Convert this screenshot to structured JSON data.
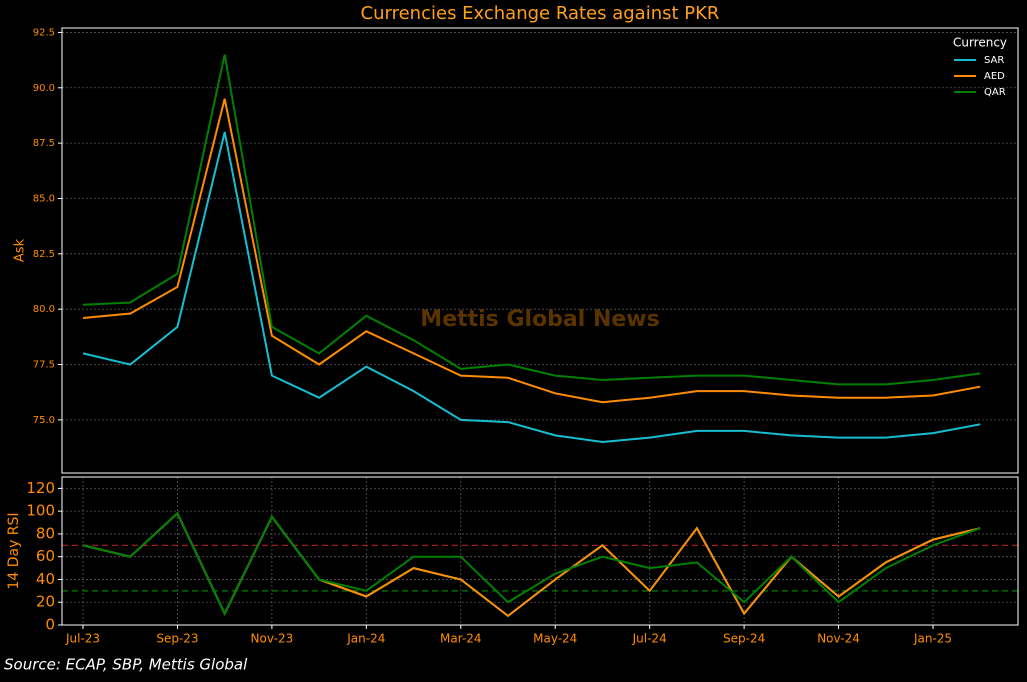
{
  "chart_data": [
    {
      "type": "line",
      "title": "Currencies Exchange Rates against PKR",
      "ylabel": "Ask",
      "watermark": "Mettis Global News",
      "legend_title": "Currency",
      "legend": "upper right",
      "grid": true,
      "x": [
        "2023-07",
        "2023-08",
        "2023-09",
        "2023-10",
        "2023-11",
        "2023-12",
        "2024-01",
        "2024-02",
        "2024-03",
        "2024-04",
        "2024-05",
        "2024-06",
        "2024-07",
        "2024-08",
        "2024-09",
        "2024-10",
        "2024-11",
        "2024-12",
        "2025-01",
        "2025-02"
      ],
      "ylim": [
        72.6,
        92.7
      ],
      "yticks": [
        {
          "value": 75,
          "label": "75.0"
        },
        77.5,
        {
          "value": 80,
          "label": "80.0"
        },
        82.5,
        {
          "value": 85,
          "label": "85.0"
        },
        87.5,
        {
          "value": 90,
          "label": "90.0"
        },
        92.5
      ],
      "series": [
        {
          "name": "SAR",
          "color": "#17becf",
          "values": [
            78.0,
            77.5,
            79.2,
            88.0,
            77.0,
            76.0,
            77.4,
            76.3,
            75.0,
            74.9,
            74.3,
            74.0,
            74.2,
            74.5,
            74.5,
            74.3,
            74.2,
            74.2,
            74.4,
            74.8
          ]
        },
        {
          "name": "AED",
          "color": "#ff8c00",
          "values": [
            79.6,
            79.8,
            81.0,
            89.5,
            78.8,
            77.5,
            79.0,
            78.0,
            77.0,
            76.9,
            76.2,
            75.8,
            76.0,
            76.3,
            76.3,
            76.1,
            76.0,
            76.0,
            76.1,
            76.5
          ]
        },
        {
          "name": "QAR",
          "color": "#008000",
          "values": [
            80.2,
            80.3,
            81.6,
            91.5,
            79.2,
            78.0,
            79.7,
            78.6,
            77.3,
            77.5,
            77.0,
            76.8,
            76.9,
            77.0,
            77.0,
            76.8,
            76.6,
            76.6,
            76.8,
            77.1
          ]
        }
      ]
    },
    {
      "type": "line",
      "ylabel": "14 Day RSI",
      "grid": true,
      "x": [
        "2023-07",
        "2023-08",
        "2023-09",
        "2023-10",
        "2023-11",
        "2023-12",
        "2024-01",
        "2024-02",
        "2024-03",
        "2024-04",
        "2024-05",
        "2024-06",
        "2024-07",
        "2024-08",
        "2024-09",
        "2024-10",
        "2024-11",
        "2024-12",
        "2025-01",
        "2025-02"
      ],
      "ylim": [
        0,
        130
      ],
      "yticks": [
        0,
        20,
        40,
        60,
        80,
        100,
        120
      ],
      "xticks": [
        {
          "value": "2023-07",
          "label": "Jul-23"
        },
        {
          "value": "2023-09",
          "label": "Sep-23"
        },
        {
          "value": "2023-11",
          "label": "Nov-23"
        },
        {
          "value": "2024-01",
          "label": "Jan-24"
        },
        {
          "value": "2024-03",
          "label": "Mar-24"
        },
        {
          "value": "2024-05",
          "label": "May-24"
        },
        {
          "value": "2024-07",
          "label": "Jul-24"
        },
        {
          "value": "2024-09",
          "label": "Sep-24"
        },
        {
          "value": "2024-11",
          "label": "Nov-24"
        },
        {
          "value": "2025-01",
          "label": "Jan-25"
        }
      ],
      "reference_lines": [
        {
          "value": 70,
          "color": "#b22222"
        },
        {
          "value": 30,
          "color": "#008000"
        }
      ],
      "series": [
        {
          "name": "SAR",
          "color": "#17becf",
          "values": [
            70,
            60,
            98,
            10,
            95,
            40,
            25,
            50,
            40,
            8,
            40,
            70,
            30,
            85,
            10,
            60,
            25,
            55,
            75,
            85
          ]
        },
        {
          "name": "AED",
          "color": "#ff8c00",
          "values": [
            70,
            60,
            98,
            10,
            95,
            40,
            25,
            50,
            40,
            8,
            40,
            70,
            30,
            85,
            10,
            60,
            25,
            55,
            75,
            85
          ]
        },
        {
          "name": "QAR",
          "color": "#008000",
          "values": [
            70,
            60,
            98,
            10,
            95,
            40,
            30,
            60,
            60,
            20,
            45,
            60,
            50,
            55,
            20,
            60,
            20,
            50,
            70,
            85
          ]
        }
      ]
    }
  ],
  "source": "Source: ECAP, SBP, Mettis Global"
}
